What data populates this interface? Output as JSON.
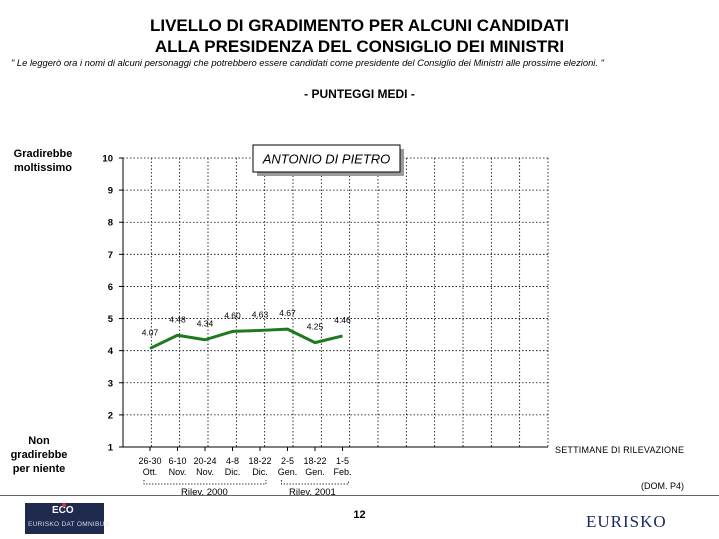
{
  "header": {
    "title_line1": "LIVELLO DI GRADIMENTO PER ALCUNI CANDIDATI",
    "title_line2": "ALLA PRESIDENZA DEL CONSIGLIO DEI MINISTRI",
    "note": "\" Le leggerò ora i nomi di alcuni personaggi che potrebbero essere candidati come presidente del Consiglio dei Ministri alle prossime elezioni. \"",
    "subtitle": "- PUNTEGGI MEDI -"
  },
  "chart_data": {
    "type": "line",
    "title": "ANTONIO DI PIETRO",
    "y_top_label": "Gradirebbe moltissimo",
    "y_bottom_label": "Non gradirebbe per niente",
    "x_axis_label": "SETTIMANE DI RILEVAZIONE",
    "ylim": [
      1,
      10
    ],
    "yticks": [
      1,
      2,
      3,
      4,
      5,
      6,
      7,
      8,
      9,
      10
    ],
    "categories": [
      {
        "top": "26-30",
        "bottom": "Ott."
      },
      {
        "top": "6-10",
        "bottom": "Nov."
      },
      {
        "top": "20-24",
        "bottom": "Nov."
      },
      {
        "top": "4-8",
        "bottom": "Dic."
      },
      {
        "top": "18-22",
        "bottom": "Dic."
      },
      {
        "top": "2-5",
        "bottom": "Gen."
      },
      {
        "top": "18-22",
        "bottom": "Gen."
      },
      {
        "top": "1-5",
        "bottom": "Feb."
      }
    ],
    "values": [
      4.07,
      4.48,
      4.34,
      4.6,
      4.63,
      4.67,
      4.25,
      4.46
    ],
    "value_labels": [
      "4.07",
      "4.48",
      "4.34",
      "4.60",
      "4.63",
      "4.67",
      "4.25",
      "4.46"
    ],
    "groups": [
      {
        "label": "Rilev. 2000",
        "from": 0,
        "to": 4
      },
      {
        "label": "Rilev. 2001",
        "from": 5,
        "to": 7
      }
    ],
    "line_color": "#1f7a1f",
    "grid": true
  },
  "footer": {
    "source": "(DOM. P4)",
    "page_number": "12",
    "logo_left_text": "ECO",
    "logo_left_sub": "EURISKO DAT OMNIBUS",
    "logo_right_text": "EURISKO"
  }
}
